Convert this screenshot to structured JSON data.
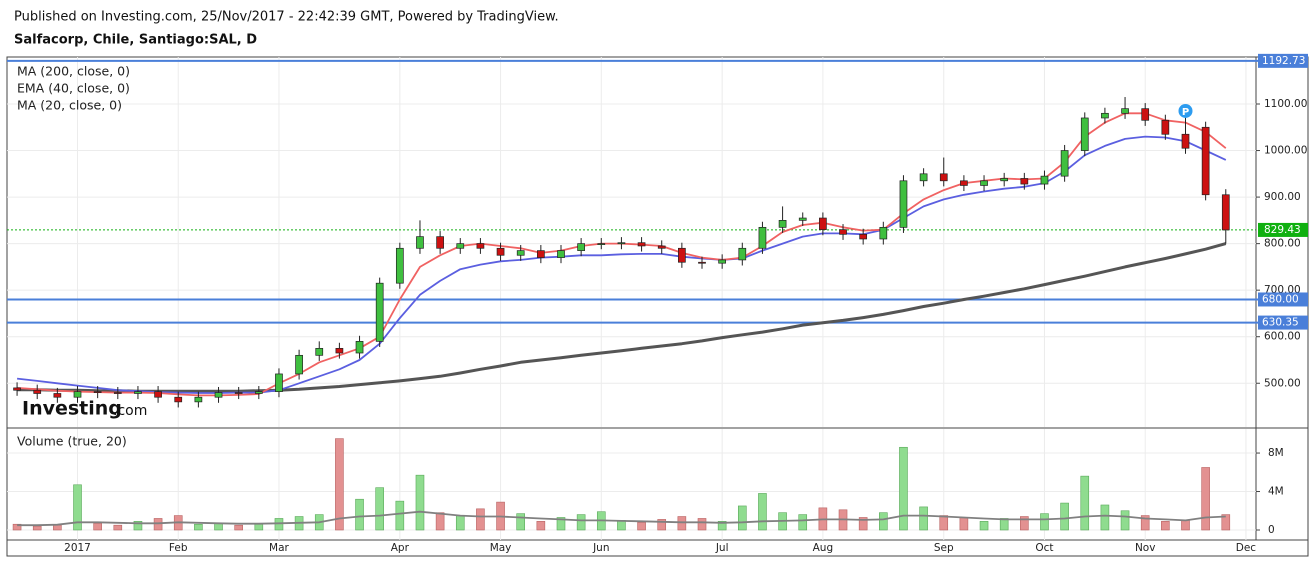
{
  "published": "Published on Investing.com, 25/Nov/2017 - 22:42:39 GMT, Powered by TradingView.",
  "symbol": "Salfacorp, Chile, Santiago:SAL, D",
  "watermark": "Investing",
  "watermark_suffix": ".com",
  "chart_data": {
    "type": "candlestick",
    "categories": [
      null,
      null,
      null,
      "2017",
      null,
      null,
      null,
      null,
      "Feb",
      null,
      null,
      null,
      null,
      "Mar",
      null,
      null,
      null,
      null,
      null,
      "Apr",
      null,
      null,
      null,
      null,
      "May",
      null,
      null,
      null,
      null,
      "Jun",
      null,
      null,
      null,
      null,
      null,
      "Jul",
      null,
      null,
      null,
      null,
      "Aug",
      null,
      null,
      null,
      null,
      null,
      "Sep",
      null,
      null,
      null,
      null,
      "Oct",
      null,
      null,
      null,
      null,
      "Nov",
      null,
      null,
      null,
      null,
      "Dec"
    ],
    "open": [
      490,
      485,
      478,
      470,
      482,
      480,
      478,
      482,
      470,
      460,
      470,
      480,
      478,
      482,
      520,
      560,
      575,
      565,
      590,
      715,
      790,
      815,
      790,
      800,
      790,
      775,
      785,
      770,
      785,
      800,
      800,
      802,
      795,
      790,
      760,
      758,
      765,
      790,
      835,
      850,
      855,
      830,
      820,
      810,
      835,
      935,
      950,
      935,
      925,
      935,
      940,
      928,
      945,
      1000,
      1070,
      1080,
      1090,
      1065,
      1035,
      1050,
      905,
      null
    ],
    "high": [
      502,
      497,
      490,
      494,
      494,
      492,
      494,
      494,
      482,
      482,
      492,
      492,
      494,
      532,
      572,
      590,
      587,
      602,
      727,
      802,
      850,
      827,
      812,
      812,
      802,
      797,
      797,
      797,
      812,
      812,
      814,
      814,
      807,
      802,
      772,
      777,
      802,
      847,
      880,
      867,
      867,
      842,
      832,
      847,
      947,
      962,
      985,
      947,
      947,
      952,
      952,
      957,
      1012,
      1082,
      1092,
      1115,
      1102,
      1077,
      1085,
      1062,
      917,
      null
    ],
    "low": [
      473,
      466,
      458,
      458,
      468,
      466,
      466,
      458,
      448,
      448,
      458,
      466,
      466,
      470,
      508,
      548,
      553,
      553,
      578,
      703,
      778,
      778,
      778,
      778,
      763,
      763,
      758,
      758,
      773,
      788,
      788,
      783,
      778,
      748,
      746,
      746,
      753,
      778,
      823,
      838,
      818,
      808,
      798,
      798,
      823,
      923,
      923,
      913,
      913,
      923,
      916,
      916,
      933,
      988,
      1058,
      1068,
      1053,
      1023,
      993,
      893,
      800,
      null
    ],
    "close": [
      485,
      478,
      470,
      482,
      480,
      478,
      482,
      470,
      460,
      470,
      480,
      478,
      482,
      520,
      560,
      575,
      565,
      590,
      715,
      790,
      815,
      790,
      800,
      790,
      775,
      785,
      770,
      785,
      800,
      800,
      802,
      795,
      790,
      760,
      758,
      765,
      790,
      835,
      850,
      855,
      830,
      820,
      810,
      835,
      935,
      950,
      935,
      925,
      935,
      940,
      928,
      945,
      1000,
      1070,
      1080,
      1090,
      1065,
      1035,
      1005,
      905,
      829.43,
      null
    ],
    "up_color": "#3fbf3f",
    "down_color": "#cc1111",
    "series": [
      {
        "name": "MA (200, close, 0)",
        "color": "#555555",
        "values": [
          486,
          486,
          485,
          485,
          484,
          484,
          483,
          483,
          483,
          483,
          483,
          483,
          484,
          485,
          487,
          490,
          493,
          497,
          501,
          505,
          510,
          515,
          522,
          530,
          537,
          545,
          550,
          555,
          560,
          565,
          570,
          575,
          580,
          585,
          591,
          598,
          604,
          610,
          617,
          625,
          630,
          635,
          641,
          648,
          656,
          665,
          672,
          680,
          687,
          695,
          703,
          712,
          721,
          730,
          740,
          750,
          759,
          768,
          778,
          788,
          800,
          null
        ]
      },
      {
        "name": "EMA (40, close, 0)",
        "color": "#5b5fe0",
        "values": [
          510,
          505,
          500,
          495,
          490,
          485,
          483,
          481,
          480,
          479,
          479,
          480,
          480,
          485,
          500,
          515,
          530,
          550,
          585,
          640,
          690,
          720,
          745,
          755,
          762,
          765,
          770,
          772,
          775,
          775,
          777,
          778,
          778,
          772,
          768,
          765,
          768,
          785,
          800,
          815,
          822,
          822,
          820,
          830,
          855,
          880,
          895,
          905,
          912,
          918,
          922,
          930,
          955,
          990,
          1010,
          1025,
          1030,
          1028,
          1020,
          1000,
          980,
          null
        ]
      },
      {
        "name": "MA (20, close, 0)",
        "color": "#f06262",
        "values": [
          490,
          487,
          484,
          482,
          481,
          480,
          480,
          479,
          476,
          474,
          474,
          475,
          477,
          500,
          520,
          545,
          560,
          575,
          600,
          680,
          750,
          775,
          795,
          800,
          795,
          790,
          780,
          785,
          795,
          800,
          800,
          798,
          795,
          780,
          770,
          765,
          770,
          795,
          825,
          840,
          845,
          835,
          828,
          830,
          865,
          895,
          915,
          930,
          935,
          940,
          938,
          940,
          975,
          1030,
          1060,
          1080,
          1080,
          1065,
          1060,
          1040,
          1005,
          null
        ]
      }
    ],
    "ylim": [
      406,
      1201
    ],
    "yticks": [
      {
        "value": 500,
        "label": "500.00"
      },
      {
        "value": 600,
        "label": "600.00"
      },
      {
        "value": 700,
        "label": "700.00"
      },
      {
        "value": 800,
        "label": "800.00"
      },
      {
        "value": 900,
        "label": "900.00"
      },
      {
        "value": 1000,
        "label": "1000.00"
      },
      {
        "value": 1100,
        "label": "1100.00"
      }
    ],
    "price_lines": [
      {
        "value": 1192.73,
        "label": "1192.73"
      },
      {
        "value": 680,
        "label": "680.00"
      },
      {
        "value": 630.35,
        "label": "630.35"
      }
    ],
    "price_line_color": "#4a7fd9",
    "last_price": {
      "value": 829.43,
      "label": "829.43"
    },
    "last_price_color": "#10b010",
    "pattern_marker": "P",
    "grid": true,
    "volume": {
      "type": "bar",
      "title": "Volume (true, 20)",
      "values": [
        600000,
        400000,
        500000,
        4700000,
        700000,
        500000,
        900000,
        1200000,
        1500000,
        600000,
        700000,
        500000,
        600000,
        1200000,
        1400000,
        1600000,
        9500000,
        3200000,
        4400000,
        3000000,
        5700000,
        1800000,
        1500000,
        2200000,
        2900000,
        1700000,
        900000,
        1300000,
        1600000,
        1900000,
        1000000,
        800000,
        1100000,
        1400000,
        1200000,
        900000,
        2500000,
        3800000,
        1800000,
        1600000,
        2300000,
        2100000,
        1300000,
        1800000,
        8600000,
        2400000,
        1500000,
        1300000,
        900000,
        1200000,
        1400000,
        1700000,
        2800000,
        5600000,
        2600000,
        2000000,
        1500000,
        900000,
        1000000,
        6500000,
        1600000,
        null
      ],
      "ma_values": [
        500000,
        500000,
        550000,
        800000,
        800000,
        750000,
        700000,
        700000,
        800000,
        750000,
        700000,
        650000,
        650000,
        700000,
        750000,
        800000,
        1200000,
        1400000,
        1500000,
        1700000,
        1900000,
        1700000,
        1500000,
        1400000,
        1400000,
        1300000,
        1200000,
        1100000,
        1000000,
        1000000,
        950000,
        900000,
        850000,
        800000,
        800000,
        750000,
        800000,
        900000,
        950000,
        1000000,
        1100000,
        1100000,
        1050000,
        1100000,
        1500000,
        1500000,
        1400000,
        1300000,
        1200000,
        1100000,
        1100000,
        1100000,
        1200000,
        1400000,
        1500000,
        1400000,
        1200000,
        1100000,
        1000000,
        1300000,
        1400000,
        null
      ],
      "up_color": "#8fdc8f",
      "down_color": "#e39191",
      "ma_color": "#808080",
      "ylim": [
        -1040000,
        10500000
      ],
      "yticks": [
        0,
        {
          "value": 4000000,
          "label": "4M"
        },
        {
          "value": 8000000,
          "label": "8M"
        }
      ]
    }
  }
}
